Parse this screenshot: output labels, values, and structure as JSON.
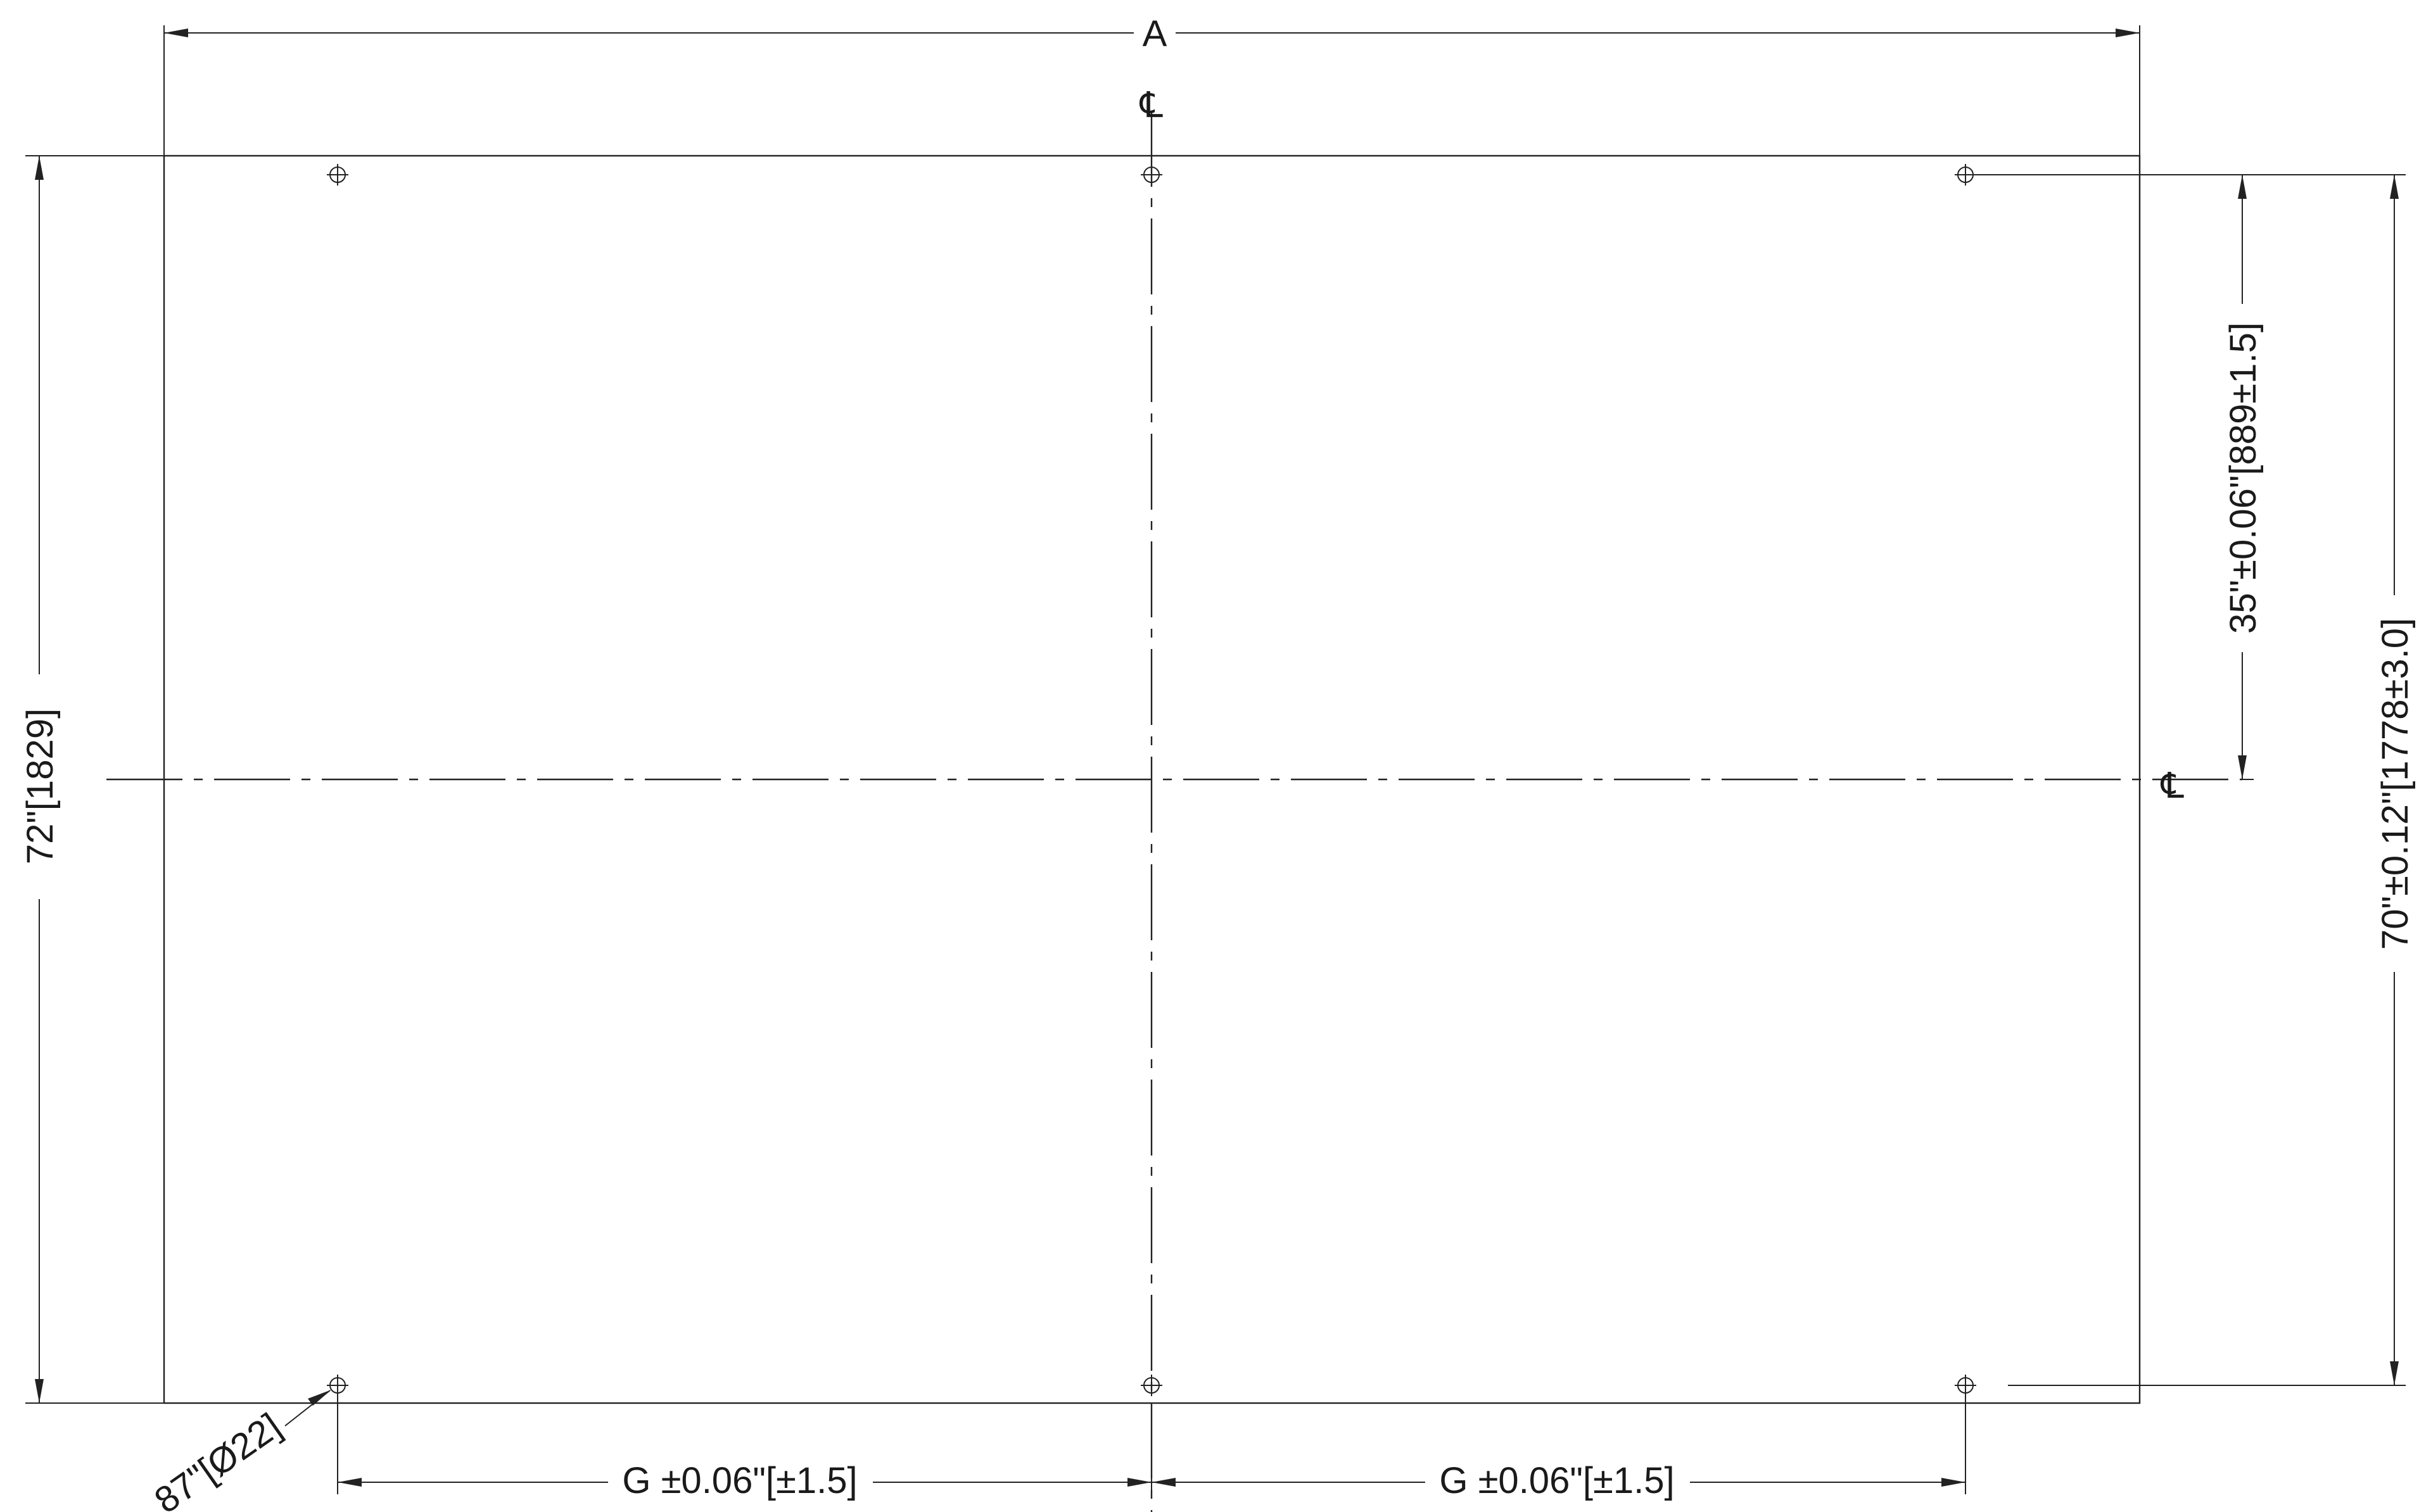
{
  "dimensions": {
    "overall_width": "A",
    "overall_height": "72\"[1829]",
    "hole_vertical_pitch": "35\"±0.06\"[889±1.5]",
    "hole_total_vertical": "70\"±0.12\"[1778±3.0]",
    "hole_horizontal_left": "G ±0.06\"[±1.5]",
    "hole_horizontal_right": "G ±0.06\"[±1.5]",
    "hole_diameter": ".87\"[Ø22]"
  },
  "centerline_symbol": "℄",
  "mounting_holes": {
    "rows": 2,
    "columns": 3,
    "count": 6
  },
  "colors": {
    "line": "#222222",
    "background": "#ffffff"
  }
}
